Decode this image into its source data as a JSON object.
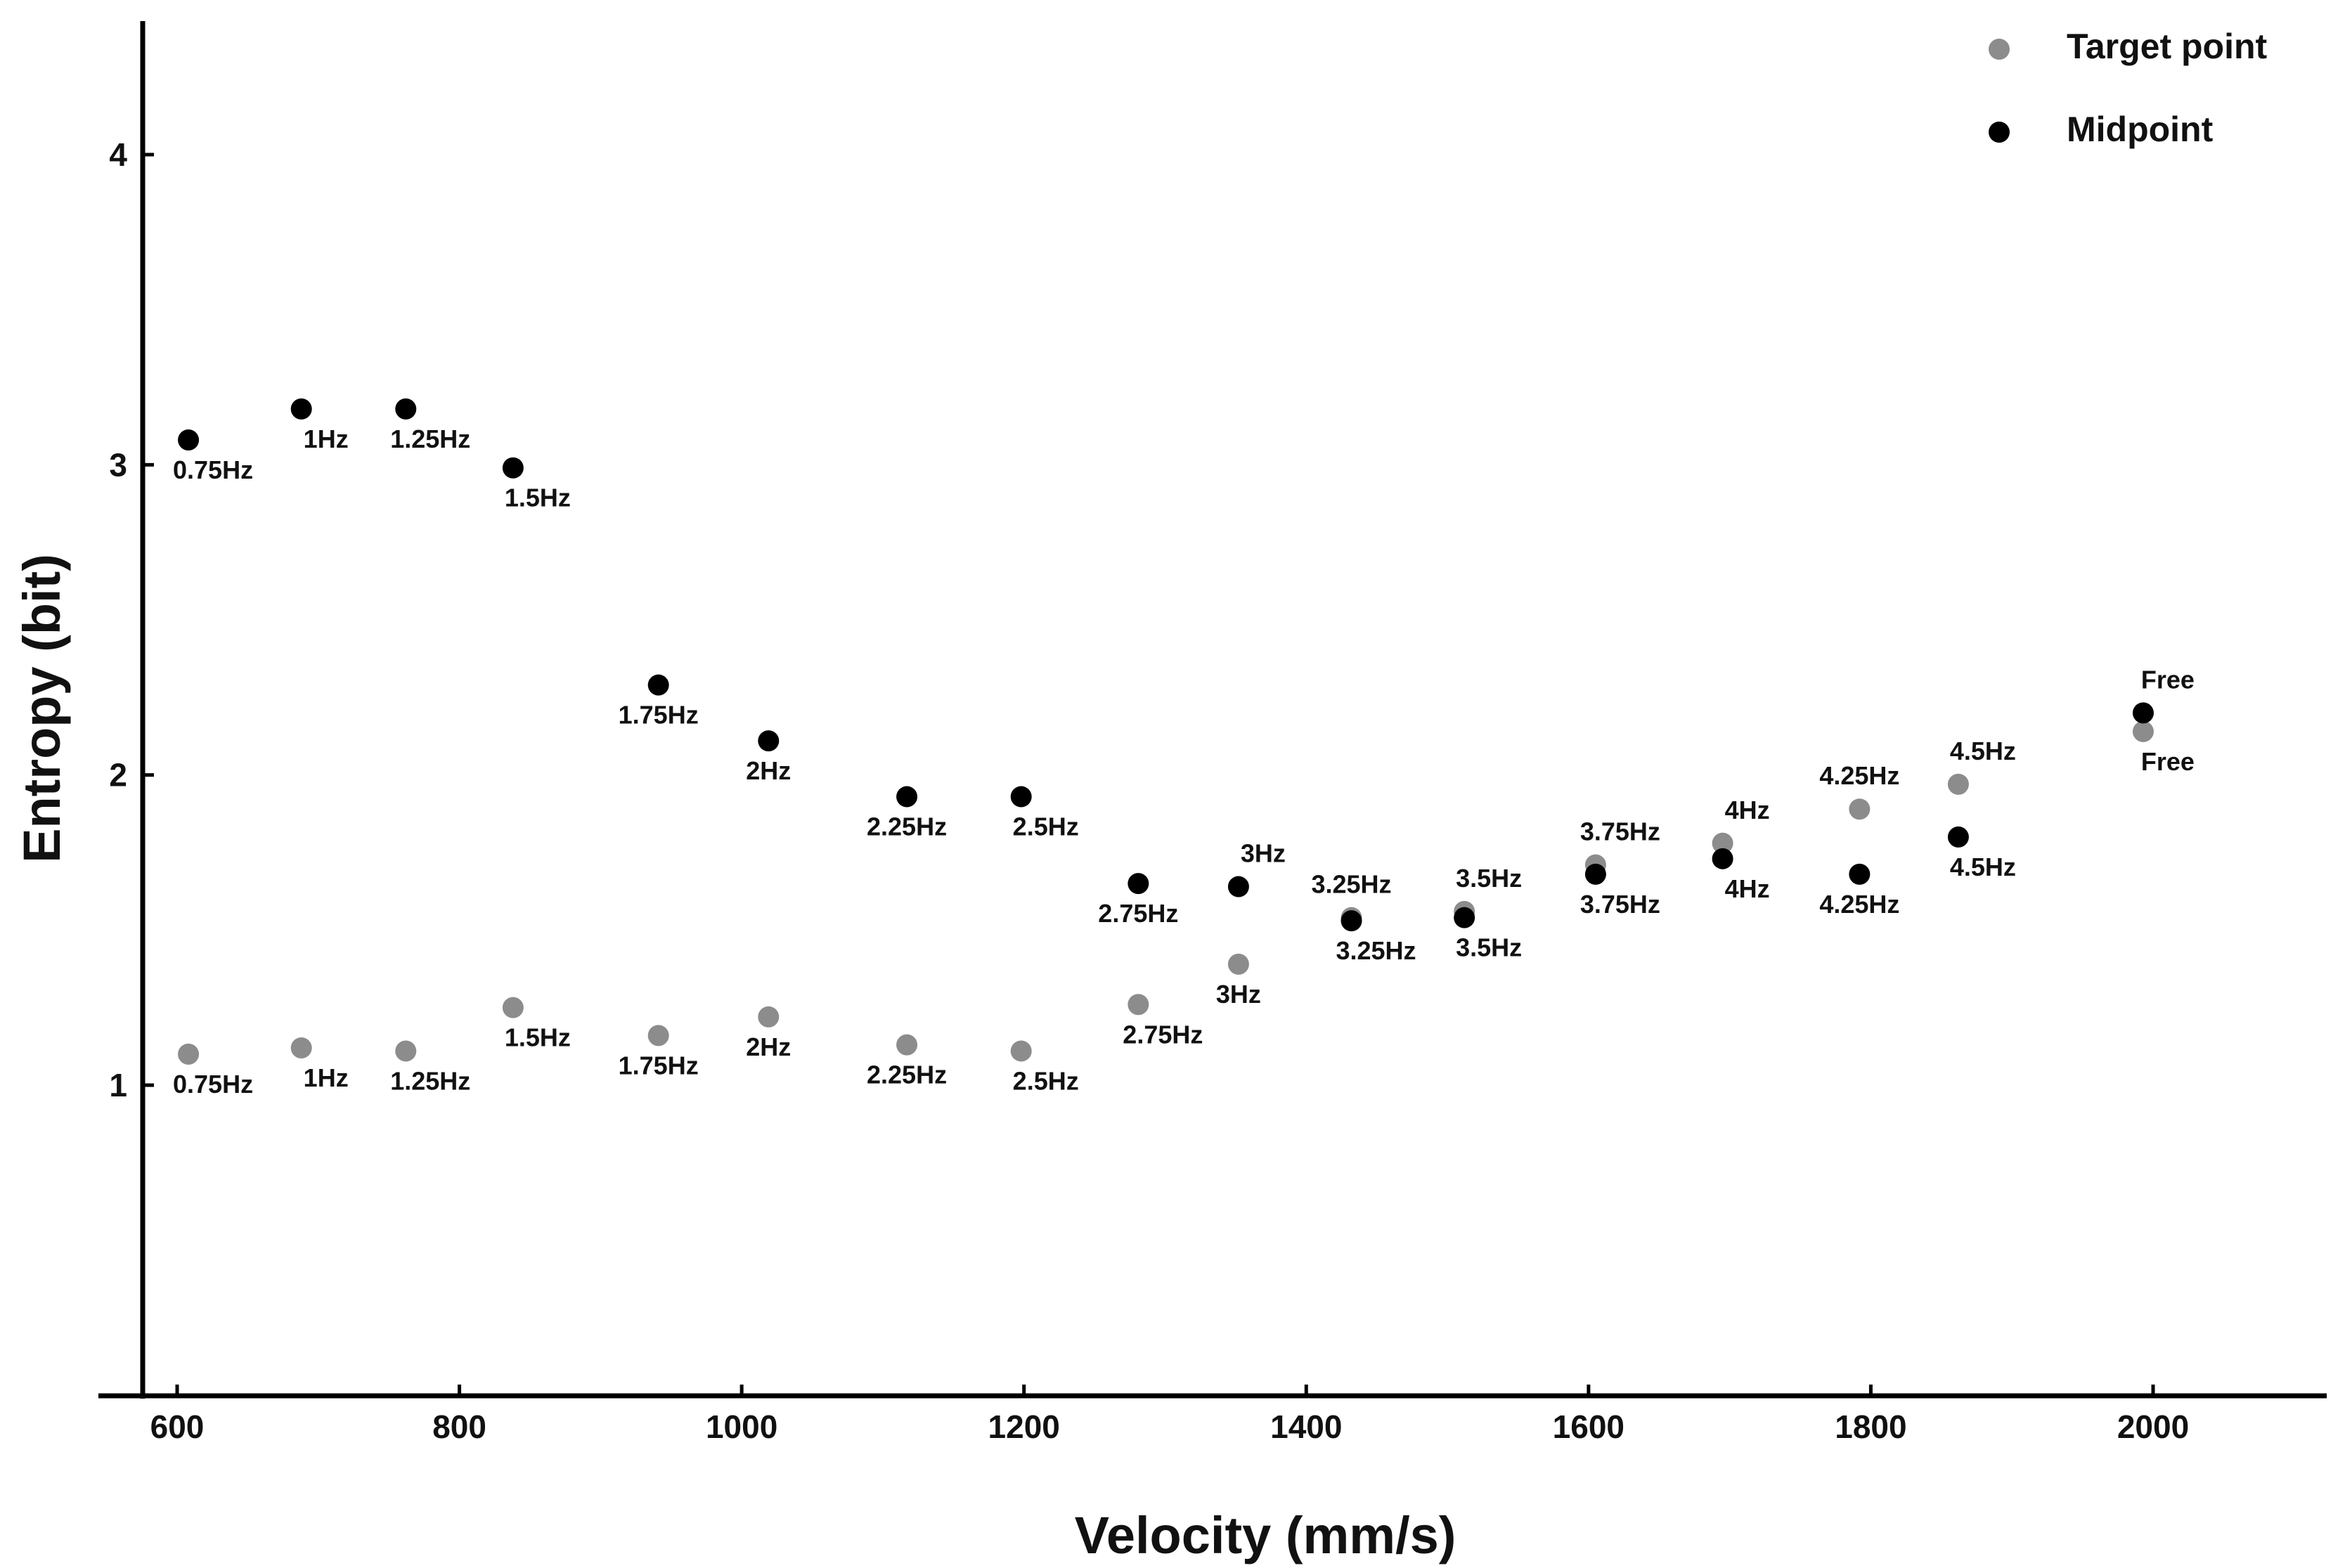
{
  "chart_data": {
    "type": "scatter",
    "title": "",
    "xlabel": "Velocity (mm/s)",
    "ylabel": "Entropy (bit)",
    "xlim": [
      580,
      2115
    ],
    "ylim": [
      0,
      4.4
    ],
    "xticks": [
      600,
      800,
      1000,
      1200,
      1400,
      1600,
      1800,
      2000
    ],
    "yticks": [
      1,
      2,
      3,
      4
    ],
    "legend_position": "top-right",
    "series": [
      {
        "name": "Target point",
        "color": "#8c8c8c",
        "points": [
          {
            "label": "0.75Hz",
            "x": 608,
            "y": 1.1,
            "label_pos": "below-right"
          },
          {
            "label": "1Hz",
            "x": 688,
            "y": 1.12,
            "label_pos": "below-right"
          },
          {
            "label": "1.25Hz",
            "x": 762,
            "y": 1.11,
            "label_pos": "below-right"
          },
          {
            "label": "1.5Hz",
            "x": 838,
            "y": 1.25,
            "label_pos": "below-right"
          },
          {
            "label": "1.75Hz",
            "x": 941,
            "y": 1.16,
            "label_pos": "below"
          },
          {
            "label": "2Hz",
            "x": 1019,
            "y": 1.22,
            "label_pos": "below"
          },
          {
            "label": "2.25Hz",
            "x": 1117,
            "y": 1.13,
            "label_pos": "below"
          },
          {
            "label": "2.5Hz",
            "x": 1198,
            "y": 1.11,
            "label_pos": "below-right"
          },
          {
            "label": "2.75Hz",
            "x": 1281,
            "y": 1.26,
            "label_pos": "below-right"
          },
          {
            "label": "3Hz",
            "x": 1352,
            "y": 1.39,
            "label_pos": "below"
          },
          {
            "label": "3.25Hz",
            "x": 1432,
            "y": 1.54,
            "label_pos": "above"
          },
          {
            "label": "3.5Hz",
            "x": 1512,
            "y": 1.56,
            "label_pos": "above-right"
          },
          {
            "label": "3.75Hz",
            "x": 1605,
            "y": 1.71,
            "label_pos": "above-right"
          },
          {
            "label": "4Hz",
            "x": 1695,
            "y": 1.78,
            "label_pos": "above-right"
          },
          {
            "label": "4.25Hz",
            "x": 1792,
            "y": 1.89,
            "label_pos": "above"
          },
          {
            "label": "4.5Hz",
            "x": 1862,
            "y": 1.97,
            "label_pos": "above-right"
          },
          {
            "label": "Free",
            "x": 1993,
            "y": 2.14,
            "label_pos": "below-right"
          }
        ]
      },
      {
        "name": "Midpoint",
        "color": "#000000",
        "points": [
          {
            "label": "0.75Hz",
            "x": 608,
            "y": 3.08,
            "label_pos": "below-right"
          },
          {
            "label": "1Hz",
            "x": 688,
            "y": 3.18,
            "label_pos": "below-right"
          },
          {
            "label": "1.25Hz",
            "x": 762,
            "y": 3.18,
            "label_pos": "below-right"
          },
          {
            "label": "1.5Hz",
            "x": 838,
            "y": 2.99,
            "label_pos": "below-right"
          },
          {
            "label": "1.75Hz",
            "x": 941,
            "y": 2.29,
            "label_pos": "below"
          },
          {
            "label": "2Hz",
            "x": 1019,
            "y": 2.11,
            "label_pos": "below"
          },
          {
            "label": "2.25Hz",
            "x": 1117,
            "y": 1.93,
            "label_pos": "below"
          },
          {
            "label": "2.5Hz",
            "x": 1198,
            "y": 1.93,
            "label_pos": "below-right"
          },
          {
            "label": "2.75Hz",
            "x": 1281,
            "y": 1.65,
            "label_pos": "below"
          },
          {
            "label": "3Hz",
            "x": 1352,
            "y": 1.64,
            "label_pos": "above-right"
          },
          {
            "label": "3.25Hz",
            "x": 1432,
            "y": 1.53,
            "label_pos": "below-right"
          },
          {
            "label": "3.5Hz",
            "x": 1512,
            "y": 1.54,
            "label_pos": "below-right"
          },
          {
            "label": "3.75Hz",
            "x": 1605,
            "y": 1.68,
            "label_pos": "below-right"
          },
          {
            "label": "4Hz",
            "x": 1695,
            "y": 1.73,
            "label_pos": "below-right"
          },
          {
            "label": "4.25Hz",
            "x": 1792,
            "y": 1.68,
            "label_pos": "below"
          },
          {
            "label": "4.5Hz",
            "x": 1862,
            "y": 1.8,
            "label_pos": "below-right"
          },
          {
            "label": "Free",
            "x": 1993,
            "y": 2.2,
            "label_pos": "above-right"
          }
        ]
      }
    ]
  }
}
